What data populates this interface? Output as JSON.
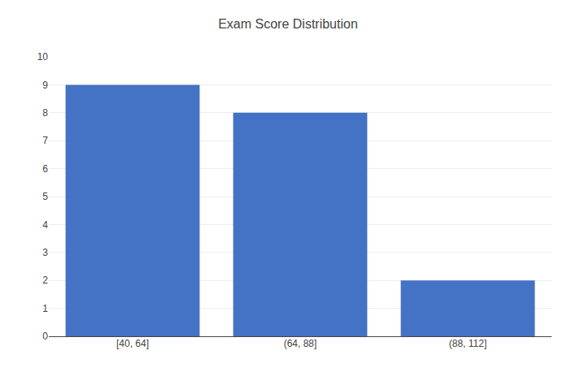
{
  "chart_data": {
    "type": "bar",
    "title": "Exam Score Distribution",
    "categories": [
      "[40, 64]",
      "(64, 88]",
      "(88, 112]"
    ],
    "values": [
      9,
      8,
      2
    ],
    "color": "#4472C4",
    "ylim": [
      0,
      10
    ],
    "yticks": [
      0,
      1,
      2,
      3,
      4,
      5,
      6,
      7,
      8,
      9,
      10
    ],
    "grid": true
  }
}
